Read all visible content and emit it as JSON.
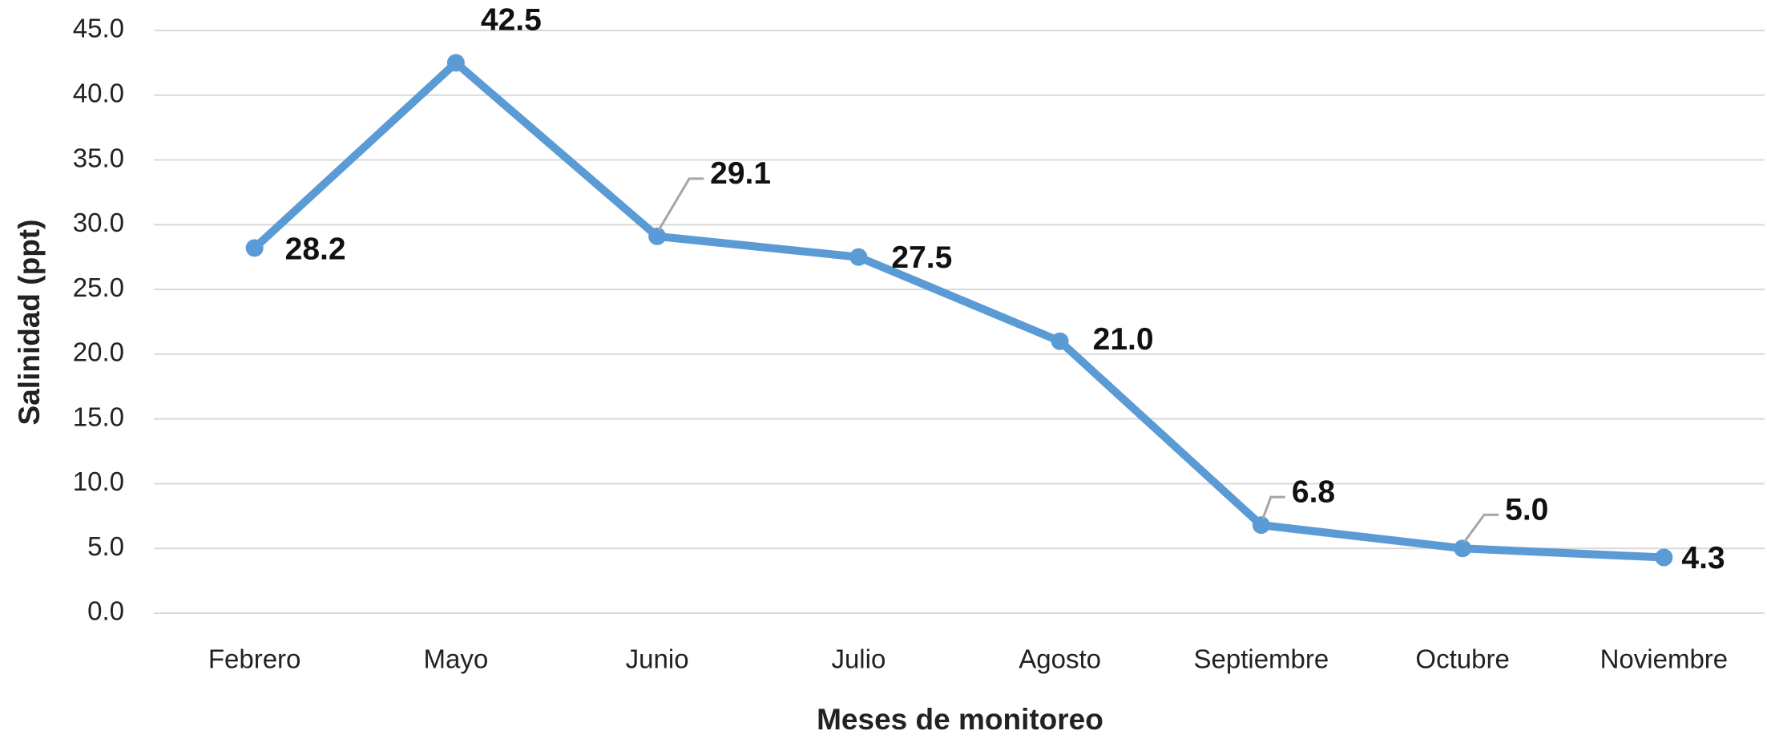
{
  "chart_data": {
    "type": "line",
    "x_label": "Meses de monitoreo",
    "y_label": "Salinidad (ppt)",
    "categories": [
      "Febrero",
      "Mayo",
      "Junio",
      "Julio",
      "Agosto",
      "Septiembre",
      "Octubre",
      "Noviembre"
    ],
    "series": [
      {
        "name": "Salinidad",
        "color": "#5b9bd5",
        "values": [
          28.2,
          42.5,
          29.1,
          27.5,
          21.0,
          6.8,
          5.0,
          4.3
        ],
        "value_labels": [
          "28.2",
          "42.5",
          "29.1",
          "27.5",
          "21.0",
          "6.8",
          "5.0",
          "4.3"
        ]
      }
    ],
    "ylim": [
      0,
      45
    ],
    "yticks": [
      {
        "value": 0,
        "label": "0.0"
      },
      {
        "value": 5,
        "label": "5.0"
      },
      {
        "value": 10,
        "label": "10.0"
      },
      {
        "value": 15,
        "label": "15.0"
      },
      {
        "value": 20,
        "label": "20.0"
      },
      {
        "value": 25,
        "label": "25.0"
      },
      {
        "value": 30,
        "label": "30.0"
      },
      {
        "value": 35,
        "label": "35.0"
      },
      {
        "value": 40,
        "label": "40.0"
      },
      {
        "value": 45,
        "label": "45.0"
      }
    ],
    "grid": true
  }
}
